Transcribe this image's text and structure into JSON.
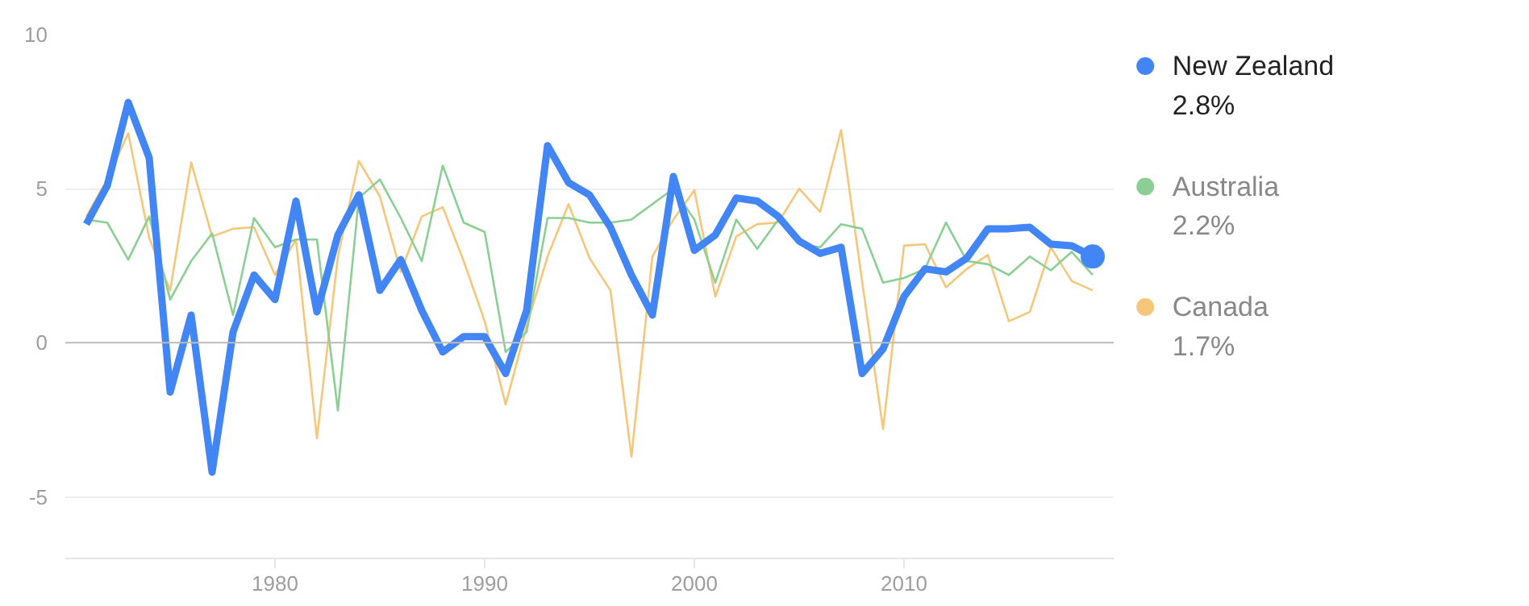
{
  "chart_data": {
    "type": "line",
    "x": [
      1971,
      1972,
      1973,
      1974,
      1975,
      1976,
      1977,
      1978,
      1979,
      1980,
      1981,
      1982,
      1983,
      1984,
      1985,
      1986,
      1987,
      1988,
      1989,
      1990,
      1991,
      1992,
      1993,
      1994,
      1995,
      1996,
      1997,
      1998,
      1999,
      2000,
      2001,
      2002,
      2003,
      2004,
      2005,
      2006,
      2007,
      2008,
      2009,
      2010,
      2011,
      2012,
      2013,
      2014,
      2015,
      2016,
      2017,
      2018,
      2019
    ],
    "series": [
      {
        "name": "New Zealand",
        "color": "#4285f4",
        "values": [
          3.85,
          5.1,
          7.8,
          6.0,
          -1.6,
          0.9,
          -4.2,
          0.35,
          2.2,
          1.4,
          4.6,
          1.0,
          3.5,
          4.8,
          1.7,
          2.7,
          1.05,
          -0.3,
          0.2,
          0.2,
          -1.0,
          1.05,
          6.4,
          5.2,
          4.8,
          3.75,
          2.2,
          0.9,
          5.4,
          3.0,
          3.5,
          4.7,
          4.6,
          4.1,
          3.3,
          2.9,
          3.1,
          -1.0,
          -0.2,
          1.5,
          2.4,
          2.3,
          2.75,
          3.7,
          3.7,
          3.75,
          3.2,
          3.15,
          2.8
        ]
      },
      {
        "name": "Australia",
        "color": "#8ccf95",
        "values": [
          4.0,
          3.9,
          2.7,
          4.1,
          1.4,
          2.65,
          3.55,
          0.9,
          4.05,
          3.1,
          3.35,
          3.35,
          -2.2,
          4.7,
          5.3,
          4.05,
          2.65,
          5.75,
          3.9,
          3.6,
          -0.3,
          0.35,
          4.05,
          4.05,
          3.9,
          3.9,
          4.0,
          4.5,
          5.0,
          4.0,
          1.95,
          4.0,
          3.05,
          4.0,
          3.2,
          3.1,
          3.85,
          3.7,
          1.95,
          2.1,
          2.4,
          3.9,
          2.65,
          2.55,
          2.2,
          2.8,
          2.35,
          2.95,
          2.2
        ]
      },
      {
        "name": "Canada",
        "color": "#f6c77a",
        "values": [
          4.1,
          5.3,
          6.8,
          3.4,
          1.7,
          5.85,
          3.45,
          3.7,
          3.75,
          2.2,
          3.35,
          -3.1,
          2.8,
          5.9,
          4.75,
          2.3,
          4.1,
          4.4,
          2.65,
          0.7,
          -2.0,
          0.55,
          2.8,
          4.5,
          2.75,
          1.7,
          -3.7,
          2.8,
          4.0,
          4.95,
          1.5,
          3.45,
          3.85,
          3.9,
          5.0,
          4.25,
          6.9,
          2.0,
          -2.8,
          3.15,
          3.2,
          1.8,
          2.4,
          2.85,
          0.7,
          1.0,
          3.1,
          2.0,
          1.7
        ]
      }
    ],
    "annotations": [
      "2.8%",
      "2.2%",
      "1.7%"
    ],
    "xlim": [
      1970,
      2020
    ],
    "xticks": [
      1980,
      1990,
      2000,
      2010
    ],
    "ylim": [
      -7,
      10
    ],
    "yticks": [
      -5,
      0,
      5,
      10
    ],
    "grid": "y",
    "legend": "right"
  }
}
